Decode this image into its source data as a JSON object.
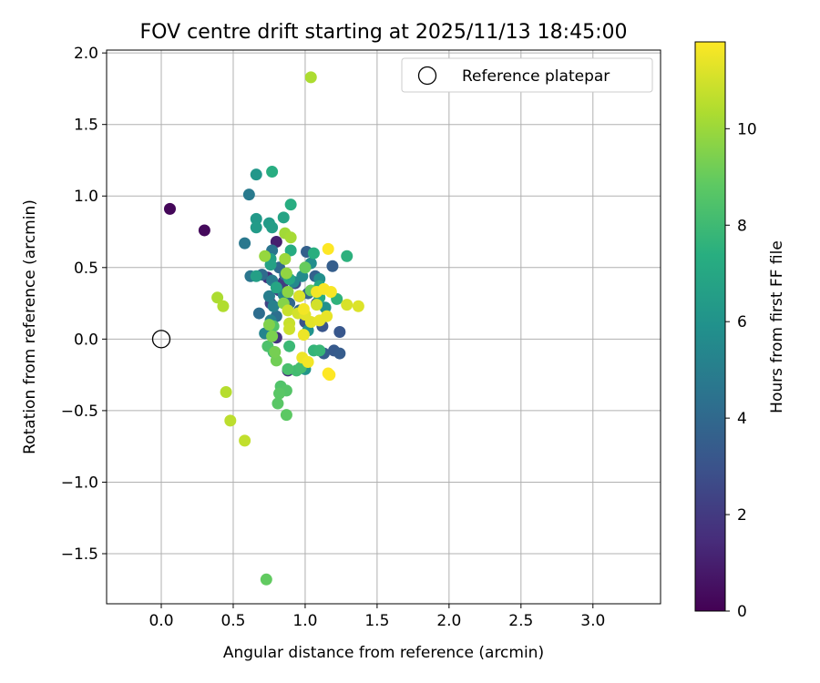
{
  "chart_data": {
    "type": "scatter",
    "title": "FOV centre drift starting at 2025/11/13 18:45:00",
    "xlabel": "Angular distance from reference (arcmin)",
    "ylabel": "Rotation from reference (arcmin)",
    "xlim": [
      -0.38,
      3.47
    ],
    "ylim": [
      -1.85,
      2.02
    ],
    "x_ticks": [
      0.0,
      0.5,
      1.0,
      1.5,
      2.0,
      2.5,
      3.0
    ],
    "x_tick_labels": [
      "0.0",
      "0.5",
      "1.0",
      "1.5",
      "2.0",
      "2.5",
      "3.0"
    ],
    "y_ticks": [
      -1.5,
      -1.0,
      -0.5,
      0.0,
      0.5,
      1.0,
      1.5,
      2.0
    ],
    "y_tick_labels": [
      "−1.5",
      "−1.0",
      "−0.5",
      "0.0",
      "0.5",
      "1.0",
      "1.5",
      "2.0"
    ],
    "grid": true,
    "legend": {
      "placement": "top-right",
      "entries": [
        "Reference platepar"
      ]
    },
    "reference_point": {
      "x": 0.0,
      "y": 0.0,
      "label": "Reference platepar"
    },
    "colorbar": {
      "label": "Hours from first FF file",
      "range": [
        0,
        11.8
      ],
      "ticks": [
        0,
        2,
        4,
        6,
        8,
        10
      ],
      "tick_labels": [
        "0",
        "2",
        "4",
        "6",
        "8",
        "10"
      ],
      "colormap": "viridis"
    },
    "points": [
      [
        0.06,
        0.91,
        0.2
      ],
      [
        0.3,
        0.76,
        0.3
      ],
      [
        0.8,
        0.68,
        1.0
      ],
      [
        0.88,
        -0.22,
        1.5
      ],
      [
        0.8,
        0.01,
        1.8
      ],
      [
        0.74,
        0.43,
        1.6
      ],
      [
        0.85,
        0.4,
        2.0
      ],
      [
        0.82,
        0.34,
        2.2
      ],
      [
        0.76,
        0.25,
        2.4
      ],
      [
        0.96,
        0.3,
        2.6
      ],
      [
        0.93,
        0.39,
        2.8
      ],
      [
        1.0,
        0.12,
        3.0
      ],
      [
        1.08,
        0.25,
        3.0
      ],
      [
        1.12,
        0.09,
        3.1
      ],
      [
        1.24,
        0.05,
        3.2
      ],
      [
        1.2,
        -0.08,
        3.3
      ],
      [
        1.24,
        -0.1,
        3.4
      ],
      [
        1.13,
        -0.1,
        3.5
      ],
      [
        1.19,
        0.51,
        3.5
      ],
      [
        1.01,
        0.61,
        3.6
      ],
      [
        1.07,
        0.44,
        3.7
      ],
      [
        1.02,
        0.32,
        3.8
      ],
      [
        0.96,
        0.2,
        3.9
      ],
      [
        0.89,
        0.25,
        3.9
      ],
      [
        0.82,
        0.5,
        4.0
      ],
      [
        0.7,
        0.45,
        4.1
      ],
      [
        0.68,
        0.18,
        4.2
      ],
      [
        0.75,
        0.04,
        4.3
      ],
      [
        0.8,
        0.16,
        4.3
      ],
      [
        0.86,
        0.45,
        4.4
      ],
      [
        0.77,
        0.62,
        4.5
      ],
      [
        0.62,
        0.44,
        4.6
      ],
      [
        0.58,
        0.67,
        4.7
      ],
      [
        0.61,
        1.01,
        4.8
      ],
      [
        0.77,
        0.41,
        4.9
      ],
      [
        0.75,
        0.3,
        5.0
      ],
      [
        0.78,
        0.23,
        5.1
      ],
      [
        0.76,
        0.13,
        5.2
      ],
      [
        0.72,
        0.04,
        5.3
      ],
      [
        0.85,
        0.31,
        5.4
      ],
      [
        0.92,
        0.4,
        5.5
      ],
      [
        0.98,
        0.44,
        5.6
      ],
      [
        1.04,
        0.53,
        5.7
      ],
      [
        1.1,
        0.42,
        5.8
      ],
      [
        1.14,
        0.22,
        5.9
      ],
      [
        1.02,
        0.06,
        6.0
      ],
      [
        1.0,
        -0.21,
        6.1
      ],
      [
        0.66,
        1.15,
        6.2
      ],
      [
        0.66,
        0.84,
        6.3
      ],
      [
        0.66,
        0.78,
        6.4
      ],
      [
        0.75,
        0.81,
        6.4
      ],
      [
        0.77,
        0.78,
        6.5
      ],
      [
        0.76,
        0.56,
        6.6
      ],
      [
        0.66,
        0.44,
        6.6
      ],
      [
        0.76,
        0.52,
        6.7
      ],
      [
        0.85,
        0.85,
        6.8
      ],
      [
        0.8,
        0.36,
        6.9
      ],
      [
        0.89,
        0.42,
        7.0
      ],
      [
        1.1,
        0.37,
        7.0
      ],
      [
        1.1,
        0.29,
        7.1
      ],
      [
        0.9,
        0.62,
        7.2
      ],
      [
        0.77,
        1.17,
        7.3
      ],
      [
        0.9,
        0.94,
        7.3
      ],
      [
        1.06,
        0.6,
        7.4
      ],
      [
        1.29,
        0.58,
        7.5
      ],
      [
        1.22,
        0.28,
        7.6
      ],
      [
        1.06,
        -0.08,
        7.7
      ],
      [
        1.1,
        -0.08,
        7.8
      ],
      [
        0.89,
        -0.05,
        7.9
      ],
      [
        0.78,
        -0.09,
        8.0
      ],
      [
        0.94,
        -0.22,
        8.1
      ],
      [
        0.97,
        -0.2,
        8.2
      ],
      [
        0.88,
        -0.21,
        8.3
      ],
      [
        0.74,
        -0.05,
        8.4
      ],
      [
        0.78,
        0.09,
        8.5
      ],
      [
        0.83,
        -0.33,
        8.5
      ],
      [
        0.87,
        -0.36,
        8.6
      ],
      [
        0.82,
        -0.38,
        8.7
      ],
      [
        0.81,
        -0.45,
        8.7
      ],
      [
        0.87,
        -0.53,
        8.8
      ],
      [
        0.73,
        -1.68,
        8.9
      ],
      [
        1.0,
        0.5,
        9.0
      ],
      [
        1.04,
        0.34,
        9.1
      ],
      [
        0.8,
        -0.15,
        9.2
      ],
      [
        0.79,
        -0.09,
        9.3
      ],
      [
        0.77,
        0.02,
        9.4
      ],
      [
        0.75,
        0.1,
        9.5
      ],
      [
        0.85,
        0.25,
        9.6
      ],
      [
        0.88,
        0.33,
        9.7
      ],
      [
        0.87,
        0.46,
        9.8
      ],
      [
        0.72,
        0.58,
        9.9
      ],
      [
        0.86,
        0.56,
        10.0
      ],
      [
        0.86,
        0.74,
        10.1
      ],
      [
        0.9,
        0.71,
        10.2
      ],
      [
        1.04,
        1.83,
        10.3
      ],
      [
        0.39,
        0.29,
        10.3
      ],
      [
        0.43,
        0.23,
        10.4
      ],
      [
        0.45,
        -0.37,
        10.5
      ],
      [
        0.48,
        -0.57,
        10.6
      ],
      [
        0.58,
        -0.71,
        10.7
      ],
      [
        0.88,
        0.2,
        10.8
      ],
      [
        0.89,
        0.11,
        10.8
      ],
      [
        0.89,
        0.07,
        10.9
      ],
      [
        0.95,
        0.18,
        11.0
      ],
      [
        1.08,
        0.24,
        11.0
      ],
      [
        1.29,
        0.24,
        11.1
      ],
      [
        1.37,
        0.23,
        11.2
      ],
      [
        0.96,
        0.3,
        11.2
      ],
      [
        1.0,
        0.17,
        11.3
      ],
      [
        1.04,
        0.12,
        11.3
      ],
      [
        1.1,
        0.13,
        11.4
      ],
      [
        1.15,
        0.16,
        11.4
      ],
      [
        0.99,
        0.03,
        11.5
      ],
      [
        0.98,
        -0.13,
        11.5
      ],
      [
        1.02,
        -0.16,
        11.6
      ],
      [
        1.08,
        0.33,
        11.6
      ],
      [
        1.13,
        0.35,
        11.7
      ],
      [
        1.18,
        0.33,
        11.7
      ],
      [
        1.16,
        0.63,
        11.8
      ],
      [
        1.16,
        -0.24,
        11.8
      ],
      [
        1.17,
        -0.25,
        11.8
      ],
      [
        0.99,
        0.21,
        11.6
      ]
    ]
  }
}
